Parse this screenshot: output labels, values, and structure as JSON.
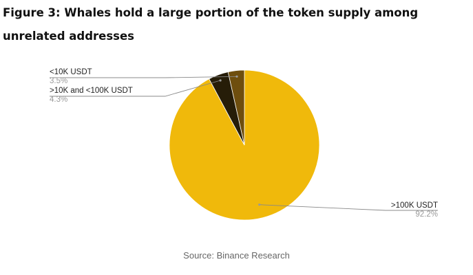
{
  "figure": {
    "title": "Figure 3: Whales hold a large portion of the token supply among unrelated addresses",
    "source": "Source: Binance Research"
  },
  "chart_data": {
    "type": "pie",
    "title": "",
    "slices": [
      {
        "label": ">100K USDT",
        "value": 92.2,
        "value_label": "92.2%",
        "color": "#F0B90B"
      },
      {
        "label": ">10K and <100K USDT",
        "value": 4.3,
        "value_label": "4.3%",
        "color": "#261D08"
      },
      {
        "label": "<10K USDT",
        "value": 3.5,
        "value_label": "3.5%",
        "color": "#6E4E0E"
      }
    ],
    "start_angle_deg": 0,
    "direction": "clockwise",
    "labels": "outside-with-leader-lines",
    "legend": "none"
  }
}
